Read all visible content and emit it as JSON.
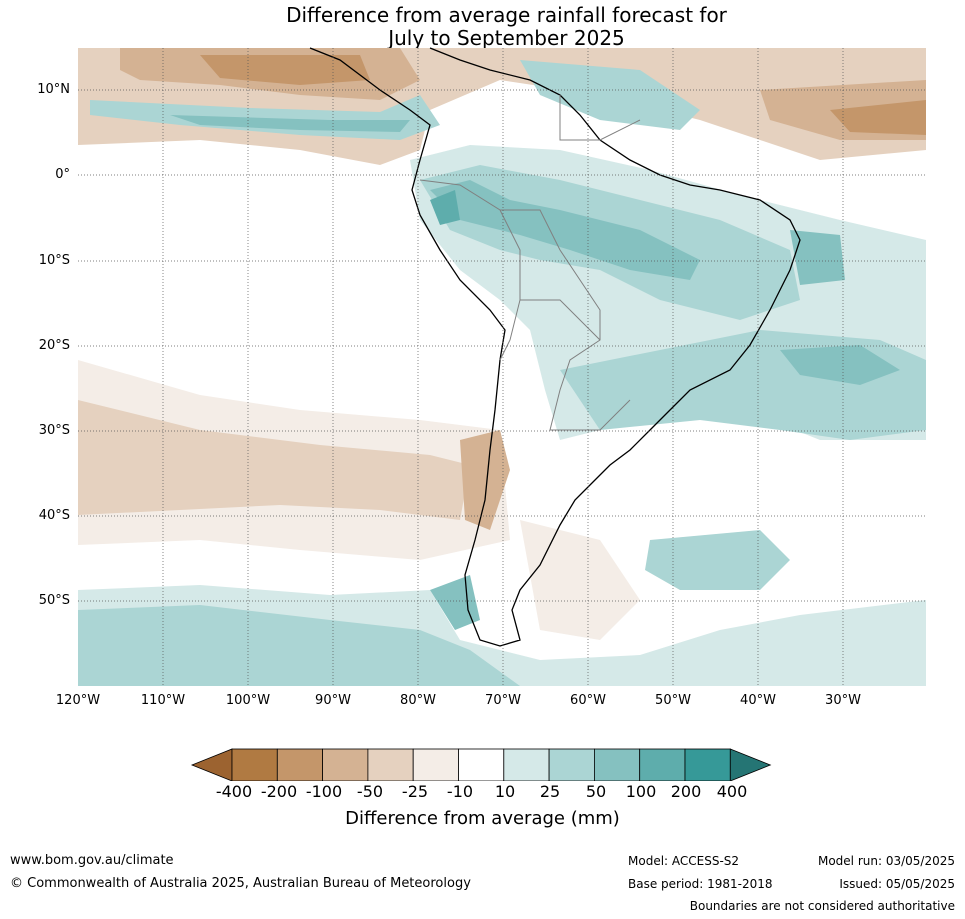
{
  "title": {
    "line1": "Difference from average rainfall forecast for",
    "line2": "July to September 2025"
  },
  "map": {
    "region": "South America",
    "lat_labels": [
      "10°N",
      "0°",
      "10°S",
      "20°S",
      "30°S",
      "40°S",
      "50°S"
    ],
    "lon_labels": [
      "120°W",
      "110°W",
      "100°W",
      "90°W",
      "80°W",
      "70°W",
      "60°W",
      "50°W",
      "40°W",
      "30°W"
    ],
    "gridlines": true
  },
  "legend": {
    "ticks": [
      "-400",
      "-200",
      "-100",
      "-50",
      "-25",
      "-10",
      "10",
      "25",
      "50",
      "100",
      "200",
      "400"
    ],
    "colors": [
      "#9c6330",
      "#b07a42",
      "#c4966a",
      "#d4b293",
      "#e5d1bf",
      "#f4ede7",
      "#ffffff",
      "#d5e9e8",
      "#abd5d4",
      "#85c1c0",
      "#5eadac",
      "#369998",
      "#257574"
    ],
    "label": "Difference from average (mm)"
  },
  "footer": {
    "website": "www.bom.gov.au/climate",
    "copyright": "© Commonwealth of Australia 2025, Australian Bureau of Meteorology",
    "model": "Model: ACCESS-S2",
    "base_period": "Base period: 1981-2018",
    "model_run": "Model run: 03/05/2025",
    "issued": "Issued: 05/05/2025",
    "disclaimer": "Boundaries are not considered authoritative"
  }
}
